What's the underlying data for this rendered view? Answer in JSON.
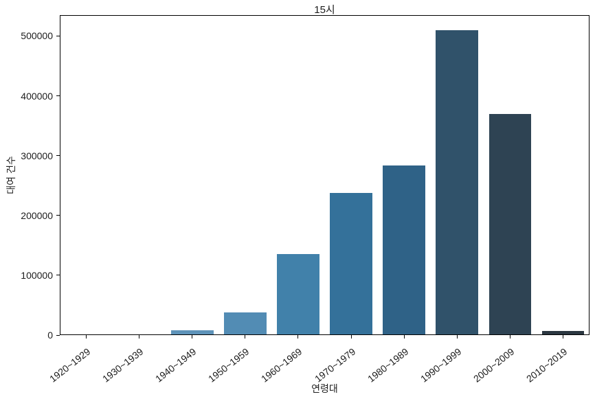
{
  "window": {
    "title": "15시"
  },
  "chart_data": {
    "type": "bar",
    "title": "15시",
    "xlabel": "연령대",
    "ylabel": "대여 건수",
    "categories": [
      "1920~1929",
      "1930~1939",
      "1940~1949",
      "1950~1959",
      "1960~1969",
      "1970~1979",
      "1980~1989",
      "1990~1999",
      "2000~2009",
      "2010~2019"
    ],
    "values": [
      0,
      0,
      7000,
      37000,
      134000,
      237000,
      283000,
      509000,
      368000,
      6000
    ],
    "bar_colors": [
      "#72a4c6",
      "#689bbf",
      "#5e93b9",
      "#528cb4",
      "#4181aa",
      "#34719a",
      "#2f6287",
      "#30526a",
      "#2e4353",
      "#2b3741"
    ],
    "yticks": [
      0,
      100000,
      200000,
      300000,
      400000,
      500000
    ],
    "ylim": [
      0,
      535000
    ],
    "grid": false,
    "legend": null,
    "x_tick_rotation_deg": 38,
    "bar_width_fraction": 0.8
  },
  "colors": {
    "background": "#ffffff",
    "spine": "#000000",
    "text": "#1c1c1c"
  }
}
